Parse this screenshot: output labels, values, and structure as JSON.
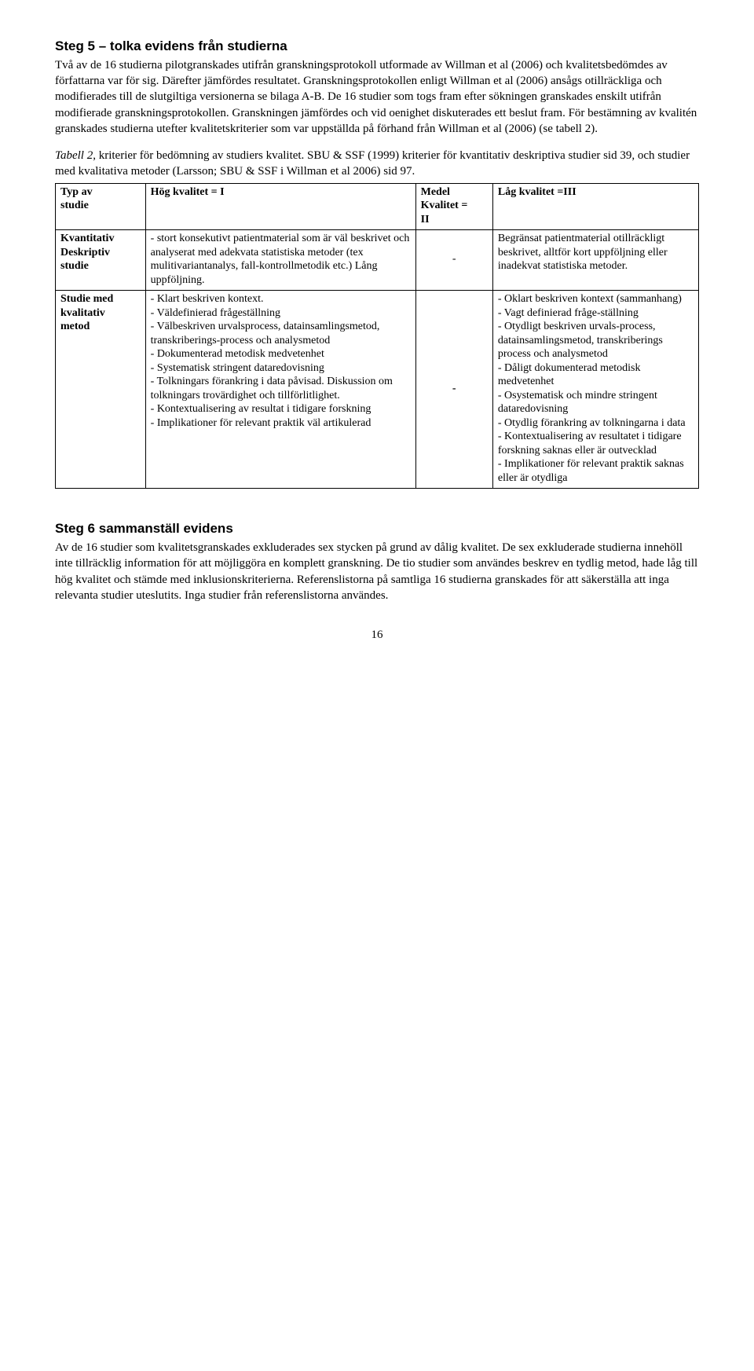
{
  "step5": {
    "heading": "Steg 5 – tolka evidens från studierna",
    "body": "Två av de 16 studierna pilotgranskades utifrån granskningsprotokoll utformade av Willman et al (2006) och kvalitetsbedömdes av författarna var för sig. Därefter jämfördes resultatet. Granskningsprotokollen enligt Willman et al (2006) ansågs otillräckliga och modifierades till de slutgiltiga versionerna se bilaga A-B. De 16 studier som togs fram efter sökningen granskades enskilt utifrån modifierade granskningsprotokollen. Granskningen jämfördes och vid oenighet diskuterades ett beslut fram. För bestämning av kvalitén granskades studierna utefter kvalitetskriterier som var uppställda på förhand från Willman et al (2006) (se tabell 2)."
  },
  "tableCaption": {
    "lead": "Tabell 2",
    "rest": ", kriterier för bedömning av studiers kvalitet. SBU & SSF (1999) kriterier för kvantitativ deskriptiva studier sid 39, och studier med kvalitativa metoder (Larsson; SBU & SSF i Willman et al 2006) sid 97."
  },
  "table": {
    "head": {
      "c1": "Typ av\nstudie",
      "c2": "Hög kvalitet = I",
      "c3": "Medel\nKvalitet =\nII",
      "c4": "Låg kvalitet =III"
    },
    "row1": {
      "c1": "Kvantitativ\nDeskriptiv\nstudie",
      "c2": "- stort konsekutivt patientmaterial som är väl beskrivet och analyserat med adekvata statistiska metoder (tex mulitivariantanalys, fall-kontrollmetodik etc.) Lång uppföljning.",
      "c3": "-",
      "c4": "Begränsat patientmaterial otillräckligt beskrivet, alltför kort uppföljning eller inadekvat statistiska metoder."
    },
    "row2": {
      "c1": "Studie med\nkvalitativ\nmetod",
      "c2": "- Klart beskriven kontext.\n- Väldefinierad frågeställning\n- Välbeskriven urvalsprocess, datainsamlingsmetod, transkriberings-process och analysmetod\n- Dokumenterad metodisk medvetenhet\n- Systematisk stringent dataredovisning\n- Tolkningars förankring i data påvisad. Diskussion om tolkningars trovärdighet och tillförlitlighet.\n- Kontextualisering av resultat i tidigare forskning\n- Implikationer för relevant praktik väl artikulerad",
      "c3": "-",
      "c4": "- Oklart beskriven kontext (sammanhang)\n- Vagt definierad fråge-ställning\n- Otydligt beskriven urvals-process, datainsamlingsmetod, transkriberings process och analysmetod\n- Dåligt dokumenterad metodisk medvetenhet\n- Osystematisk och mindre stringent dataredovisning\n- Otydlig förankring av tolkningarna i data\n- Kontextualisering av resultatet i tidigare forskning saknas eller är outvecklad\n- Implikationer för relevant praktik saknas eller är otydliga"
    }
  },
  "step6": {
    "heading": "Steg 6 sammanställ evidens",
    "body": "Av de 16 studier som kvalitetsgranskades exkluderades sex stycken på grund av dålig kvalitet. De sex exkluderade studierna innehöll inte tillräcklig information för att möjliggöra en komplett granskning. De tio studier som användes beskrev en tydlig metod, hade låg till hög kvalitet och stämde med inklusionskriterierna. Referenslistorna på samtliga 16 studierna granskades för att säkerställa att inga relevanta studier uteslutits. Inga studier från referenslistorna användes."
  },
  "pageNumber": "16"
}
